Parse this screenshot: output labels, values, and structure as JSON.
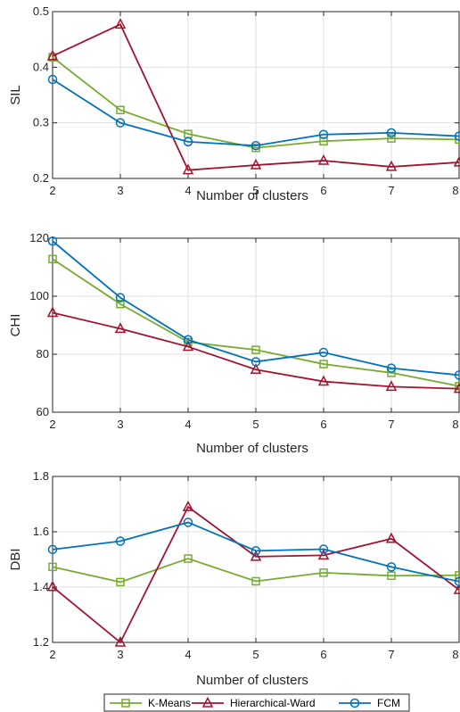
{
  "chart_data": [
    {
      "type": "line",
      "xlabel": "Number of clusters",
      "ylabel": "SIL",
      "xlim": [
        2,
        8
      ],
      "ylim": [
        0.2,
        0.5
      ],
      "x_ticks": [
        2,
        3,
        4,
        5,
        6,
        7,
        8
      ],
      "y_ticks": [
        "0.2",
        "0.3",
        "0.4",
        "0.5"
      ],
      "grid": true,
      "series": [
        {
          "name": "K-Means",
          "x": [
            2,
            3,
            4,
            5,
            6,
            7,
            8
          ],
          "values": [
            0.418,
            0.323,
            0.28,
            0.255,
            0.267,
            0.272,
            0.27
          ]
        },
        {
          "name": "Hierarchical-Ward",
          "x": [
            2,
            3,
            4,
            5,
            6,
            7,
            8
          ],
          "values": [
            0.42,
            0.477,
            0.215,
            0.224,
            0.232,
            0.221,
            0.229
          ]
        },
        {
          "name": "FCM",
          "x": [
            2,
            3,
            4,
            5,
            6,
            7,
            8
          ],
          "values": [
            0.378,
            0.3,
            0.266,
            0.259,
            0.279,
            0.282,
            0.276
          ]
        }
      ]
    },
    {
      "type": "line",
      "xlabel": "Number of clusters",
      "ylabel": "CHI",
      "xlim": [
        2,
        8
      ],
      "ylim": [
        60,
        120
      ],
      "x_ticks": [
        2,
        3,
        4,
        5,
        6,
        7,
        8
      ],
      "y_ticks": [
        "60",
        "80",
        "100",
        "120"
      ],
      "grid": true,
      "series": [
        {
          "name": "K-Means",
          "x": [
            2,
            3,
            4,
            5,
            6,
            7,
            8
          ],
          "values": [
            112.8,
            97.3,
            84.2,
            81.5,
            76.6,
            73.6,
            69.0
          ]
        },
        {
          "name": "Hierarchical-Ward",
          "x": [
            2,
            3,
            4,
            5,
            6,
            7,
            8
          ],
          "values": [
            94.3,
            88.8,
            82.6,
            74.7,
            70.6,
            68.8,
            68.1
          ]
        },
        {
          "name": "FCM",
          "x": [
            2,
            3,
            4,
            5,
            6,
            7,
            8
          ],
          "values": [
            119.0,
            99.5,
            85.0,
            77.4,
            80.6,
            75.2,
            72.8
          ]
        }
      ]
    },
    {
      "type": "line",
      "xlabel": "Number of clusters",
      "ylabel": "DBI",
      "xlim": [
        2,
        8
      ],
      "ylim": [
        1.2,
        1.8
      ],
      "x_ticks": [
        2,
        3,
        4,
        5,
        6,
        7,
        8
      ],
      "y_ticks": [
        "1.2",
        "1.4",
        "1.6",
        "1.8"
      ],
      "grid": true,
      "series": [
        {
          "name": "K-Means",
          "x": [
            2,
            3,
            4,
            5,
            6,
            7,
            8
          ],
          "values": [
            1.473,
            1.418,
            1.503,
            1.421,
            1.452,
            1.441,
            1.443
          ]
        },
        {
          "name": "Hierarchical-Ward",
          "x": [
            2,
            3,
            4,
            5,
            6,
            7,
            8
          ],
          "values": [
            1.401,
            1.2,
            1.69,
            1.51,
            1.515,
            1.575,
            1.39
          ]
        },
        {
          "name": "FCM",
          "x": [
            2,
            3,
            4,
            5,
            6,
            7,
            8
          ],
          "values": [
            1.536,
            1.566,
            1.634,
            1.531,
            1.537,
            1.473,
            1.42
          ]
        }
      ]
    }
  ],
  "legend": {
    "placement": "bottom-center",
    "entries": [
      "K-Means",
      "Hierarchical-Ward",
      "FCM"
    ]
  },
  "colors": {
    "K-Means": "#77AC30",
    "Hierarchical-Ward": "#A2142F",
    "FCM": "#0072BD",
    "grid": "#DFDFDF",
    "axis": "#262626"
  },
  "markers": {
    "K-Means": "square",
    "Hierarchical-Ward": "triangle",
    "FCM": "circle"
  }
}
